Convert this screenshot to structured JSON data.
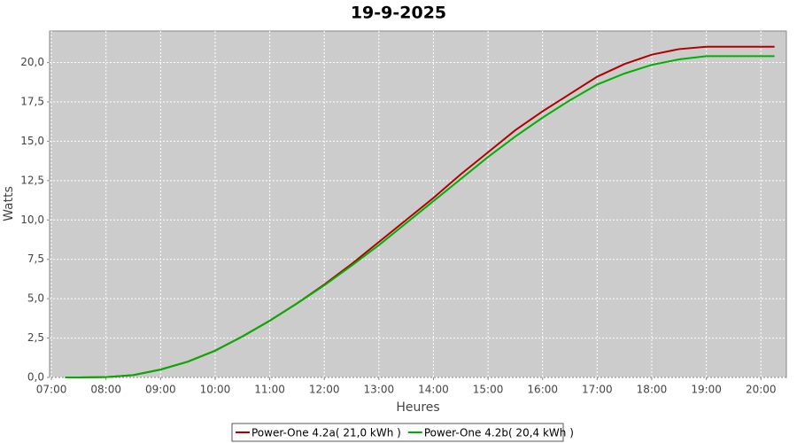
{
  "chart_data": {
    "type": "line",
    "title": "19-9-2025",
    "x_label": "Heures",
    "y_label": "Watts",
    "x": [
      "07:15",
      "07:30",
      "08:00",
      "08:30",
      "09:00",
      "09:30",
      "10:00",
      "10:30",
      "11:00",
      "11:30",
      "12:00",
      "12:30",
      "13:00",
      "13:30",
      "14:00",
      "14:30",
      "15:00",
      "15:30",
      "16:00",
      "16:30",
      "17:00",
      "17:30",
      "18:00",
      "18:30",
      "19:00",
      "19:30",
      "20:00",
      "20:15"
    ],
    "series": [
      {
        "name": "Power-One 4.2a( 21,0 kWh )",
        "color": "#b00000",
        "values": [
          0,
          0,
          0.02,
          0.15,
          0.5,
          1.0,
          1.7,
          2.6,
          3.6,
          4.7,
          5.9,
          7.2,
          8.6,
          10.0,
          11.4,
          12.9,
          14.3,
          15.7,
          16.9,
          18.0,
          19.1,
          19.9,
          20.5,
          20.85,
          21.0,
          21.0,
          21.0,
          21.0
        ]
      },
      {
        "name": "Power-One 4.2b( 20,4 kWh )",
        "color": "#00b000",
        "values": [
          0,
          0,
          0.02,
          0.15,
          0.5,
          1.0,
          1.7,
          2.6,
          3.6,
          4.7,
          5.85,
          7.1,
          8.4,
          9.8,
          11.2,
          12.6,
          14.0,
          15.3,
          16.5,
          17.6,
          18.6,
          19.3,
          19.85,
          20.2,
          20.4,
          20.4,
          20.4,
          20.4
        ]
      }
    ],
    "xlim": [
      "06:58",
      "20:28"
    ],
    "xticks": [
      "07:00",
      "08:00",
      "09:00",
      "10:00",
      "11:00",
      "12:00",
      "13:00",
      "14:00",
      "15:00",
      "16:00",
      "17:00",
      "18:00",
      "19:00",
      "20:00"
    ],
    "ylim": [
      0,
      22
    ],
    "yticks": [
      {
        "value": 0,
        "label": "0,0"
      },
      {
        "value": 2.5,
        "label": "2,5"
      },
      {
        "value": 5,
        "label": "5,0"
      },
      {
        "value": 7.5,
        "label": "7,5"
      },
      {
        "value": 10,
        "label": "10,0"
      },
      {
        "value": 12.5,
        "label": "12,5"
      },
      {
        "value": 15,
        "label": "15,0"
      },
      {
        "value": 17.5,
        "label": "17,5"
      },
      {
        "value": 20,
        "label": "20,0"
      }
    ],
    "grid": true
  }
}
